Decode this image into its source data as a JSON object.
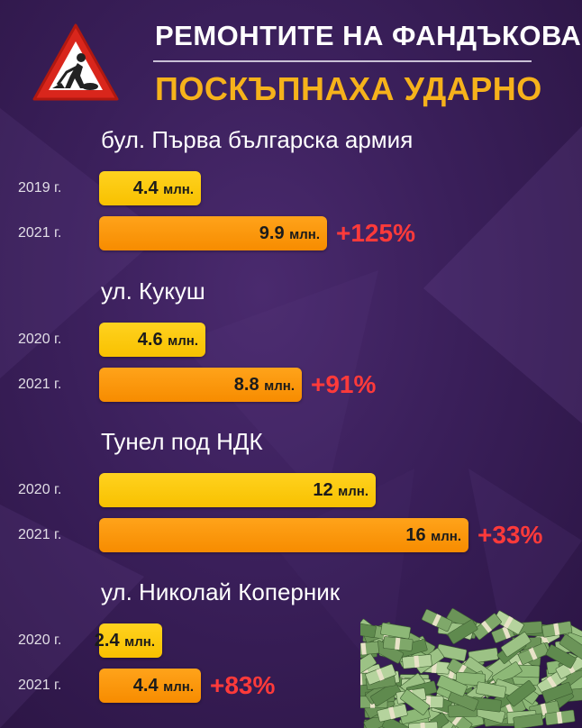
{
  "header": {
    "title_line1": "РЕМОНТИТЕ НА ФАНДЪКОВА",
    "title_line2": "ПОСКЪПНАХА УДАРНО"
  },
  "chart_data": {
    "type": "bar",
    "orientation": "horizontal",
    "grid": false,
    "unit": "млн.",
    "groups": [
      {
        "name": "бул. Първа българска армия",
        "bars": [
          {
            "year": "2019 г.",
            "value": 4.4,
            "label": "4.4",
            "color": "#f8c100"
          },
          {
            "year": "2021 г.",
            "value": 9.9,
            "label": "9.9",
            "color": "#f78c00",
            "change": "+125%"
          }
        ]
      },
      {
        "name": "ул. Кукуш",
        "bars": [
          {
            "year": "2020 г.",
            "value": 4.6,
            "label": "4.6",
            "color": "#f8c100"
          },
          {
            "year": "2021 г.",
            "value": 8.8,
            "label": "8.8",
            "color": "#f78c00",
            "change": "+91%"
          }
        ]
      },
      {
        "name": "Тунел под НДК",
        "bars": [
          {
            "year": "2020 г.",
            "value": 12,
            "label": "12",
            "color": "#f8c100"
          },
          {
            "year": "2021 г.",
            "value": 16,
            "label": "16",
            "color": "#f78c00",
            "change": "+33%"
          }
        ]
      },
      {
        "name": "ул. Николай Коперник",
        "bars": [
          {
            "year": "2020 г.",
            "value": 2.4,
            "label": "2.4",
            "color": "#f8c100"
          },
          {
            "year": "2021 г.",
            "value": 4.4,
            "label": "4.4",
            "color": "#f78c00",
            "change": "+83%"
          }
        ]
      }
    ]
  },
  "icons": {
    "warning_sign": "road-works-sign-icon",
    "money_pile": "money-pile-icon"
  },
  "colors": {
    "accent_title": "#f6b21b",
    "change_text": "#ff3a3a"
  }
}
